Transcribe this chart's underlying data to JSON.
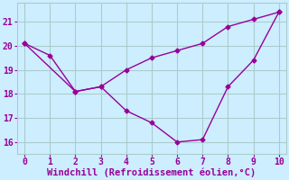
{
  "line1_x": [
    0,
    1,
    2,
    3,
    4,
    5,
    6,
    7,
    8,
    9,
    10
  ],
  "line1_y": [
    20.1,
    19.6,
    18.1,
    18.3,
    19.0,
    19.5,
    19.8,
    20.1,
    20.8,
    21.1,
    21.4
  ],
  "line2_x": [
    0,
    2,
    3,
    4,
    5,
    6,
    7,
    8,
    9,
    10
  ],
  "line2_y": [
    20.1,
    18.1,
    18.3,
    17.3,
    16.8,
    16.0,
    16.1,
    18.3,
    19.4,
    21.4
  ],
  "color": "#990099",
  "xlabel": "Windchill (Refroidissement éolien,°C)",
  "bg_color": "#cceeff",
  "grid_color": "#aacccc",
  "xlim": [
    -0.3,
    10.3
  ],
  "ylim": [
    15.5,
    21.8
  ],
  "xticks": [
    0,
    1,
    2,
    3,
    4,
    5,
    6,
    7,
    8,
    9,
    10
  ],
  "yticks": [
    16,
    17,
    18,
    19,
    20,
    21
  ],
  "marker": "D",
  "markersize": 2.5,
  "linewidth": 1.0,
  "xlabel_fontsize": 7.5,
  "tick_fontsize": 7
}
